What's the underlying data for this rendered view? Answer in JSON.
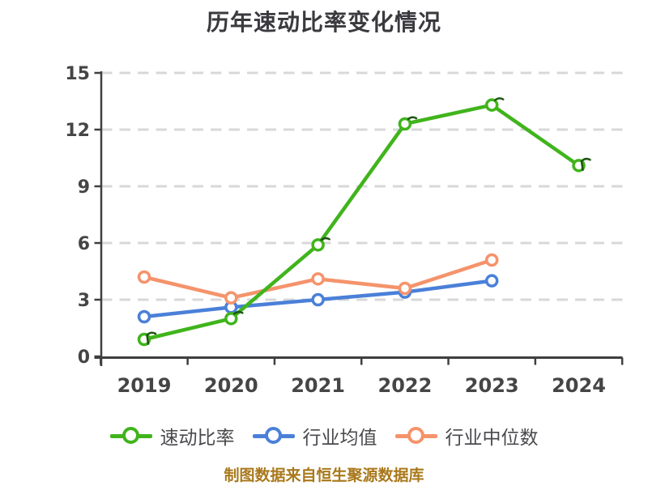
{
  "footer": {
    "text": "制图数据来自恒生聚源数据库",
    "color": "#a9781b"
  },
  "palette": {
    "background": "#ffffff",
    "title_color": "#3a3a3e",
    "axis_color": "#3f3f3f",
    "grid_color": "#d8d8d8",
    "tick_label_color": "#454545",
    "legend_text_color": "#4a4a4e",
    "marker_fill": "#ffffff",
    "green_decor": "#1e5511"
  },
  "chart_data": {
    "type": "line",
    "title": "历年速动比率变化情况",
    "categories": [
      "2019",
      "2020",
      "2021",
      "2022",
      "2023",
      "2024"
    ],
    "series": [
      {
        "key": "quick-ratio",
        "name": "速动比率",
        "color": "#40b41c",
        "values": [
          0.9,
          2.0,
          5.9,
          12.3,
          13.3,
          10.1
        ]
      },
      {
        "key": "industry-average",
        "name": "行业均值",
        "color": "#4a80d8",
        "values": [
          2.1,
          2.6,
          3.0,
          3.4,
          4.0,
          null
        ]
      },
      {
        "key": "industry-median",
        "name": "行业中位数",
        "color": "#f5936b",
        "values": [
          4.2,
          3.1,
          4.1,
          3.6,
          5.1,
          null
        ]
      }
    ],
    "xlabel": "",
    "ylabel": "",
    "ylim": [
      0,
      15
    ],
    "yticks": [
      0,
      3,
      6,
      9,
      12,
      15
    ],
    "grid": "horizontal-dashed",
    "legend_position": "bottom",
    "marker": "circle-open"
  }
}
